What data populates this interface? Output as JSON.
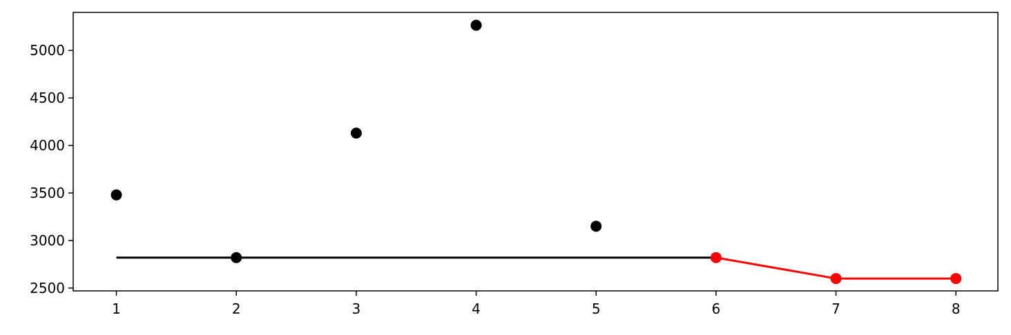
{
  "chart_data": {
    "type": "line",
    "title": "",
    "xlabel": "",
    "ylabel": "",
    "xlim": [
      0.64,
      8.35
    ],
    "ylim": [
      2470,
      5400
    ],
    "x_ticks": [
      1,
      2,
      3,
      4,
      5,
      6,
      7,
      8
    ],
    "y_ticks": [
      2500,
      3000,
      3500,
      4000,
      4500,
      5000
    ],
    "grid": false,
    "legend": "none",
    "series": [
      {
        "style": "markers",
        "color": "#000000",
        "points": [
          {
            "x": 1,
            "y": 3480
          },
          {
            "x": 2,
            "y": 2820
          },
          {
            "x": 3,
            "y": 4130
          },
          {
            "x": 4,
            "y": 5265
          },
          {
            "x": 5,
            "y": 3150
          }
        ]
      },
      {
        "style": "line",
        "color": "#000000",
        "points": [
          {
            "x": 1,
            "y": 2820
          },
          {
            "x": 6,
            "y": 2820
          }
        ]
      },
      {
        "style": "line+markers",
        "color": "#ff0000",
        "points": [
          {
            "x": 6,
            "y": 2820
          },
          {
            "x": 7,
            "y": 2600
          },
          {
            "x": 8,
            "y": 2600
          }
        ]
      }
    ]
  }
}
